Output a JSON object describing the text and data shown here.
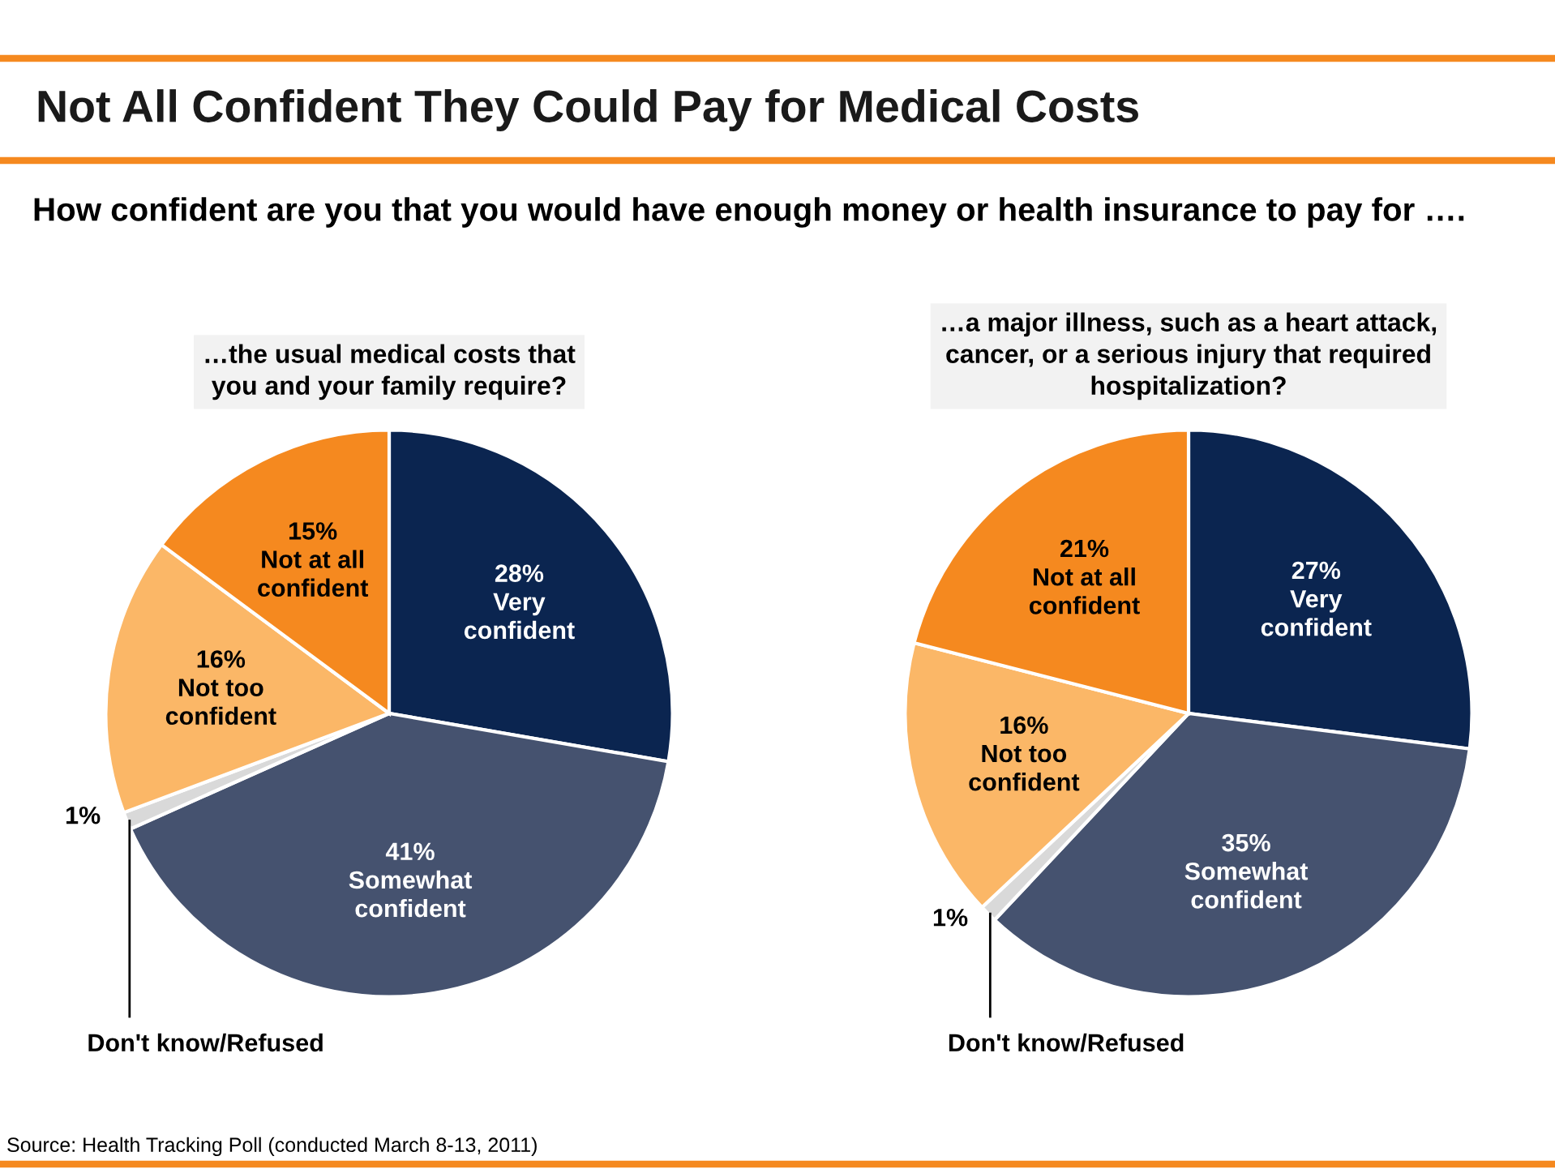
{
  "chart_data": [
    {
      "type": "pie",
      "title": "…the usual medical costs that\nyou and your family require?",
      "categories": [
        "Very\nconfident",
        "Somewhat\nconfident",
        "Don't know/Refused",
        "Not too\nconfident",
        "Not at all\nconfident"
      ],
      "values": [
        28,
        41,
        1,
        16,
        15
      ],
      "value_labels": [
        "28%",
        "41%",
        "1%",
        "16%",
        "15%"
      ],
      "colors": [
        "#0b2550",
        "#45526f",
        "#d9d9d9",
        "#fbb767",
        "#f5891f"
      ],
      "legend": false,
      "annotations": [
        "Not All Confident They Could Pay for Medical Costs",
        "How confident are you that you would have enough money or health insurance to pay for …."
      ]
    },
    {
      "type": "pie",
      "title": "…a major illness, such as a heart attack,\ncancer, or a serious injury that required\nhospitalization?",
      "categories": [
        "Very\nconfident",
        "Somewhat\nconfident",
        "Don't know/Refused",
        "Not too\nconfident",
        "Not at all\nconfident"
      ],
      "values": [
        27,
        35,
        1,
        16,
        21
      ],
      "value_labels": [
        "27%",
        "35%",
        "1%",
        "16%",
        "21%"
      ],
      "colors": [
        "#0b2550",
        "#45526f",
        "#d9d9d9",
        "#fbb767",
        "#f5891f"
      ],
      "legend": false,
      "annotations": [
        "Source: Health Tracking Poll (conducted March 8-13, 2011)"
      ]
    }
  ]
}
